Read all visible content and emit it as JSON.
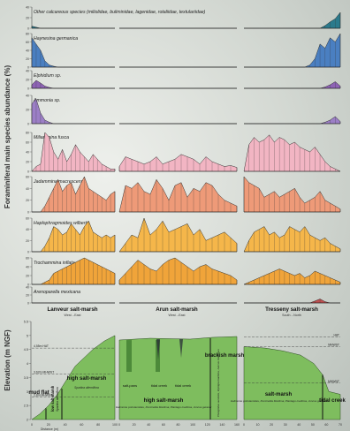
{
  "yaxis_title": "Foraminiferal main species abundance (%)",
  "elev_axis_title": "Elevation (m NGF)",
  "colors": {
    "calcareous": "#2b7a8c",
    "haynesina": "#4a7fc1",
    "elphidium": "#8e63b5",
    "ammonia": "#9c7fc6",
    "miliammina": "#f2b5c3",
    "jadammina": "#ee9a78",
    "haplophragmoides": "#f5b64a",
    "trochammina": "#f0a43a",
    "arenoparella": "#c05050",
    "marsh_green": "#7ebd5e",
    "marsh_dark": "#4d8a3a"
  },
  "species": [
    {
      "label": "Other calcareous species (miliolidae, buliminidae, lagenidae, rotaliidae, textulariidae)",
      "color_key": "calcareous",
      "ticks": [
        "40",
        "20",
        "0"
      ]
    },
    {
      "label": "Haynesina germanica",
      "color_key": "haynesina",
      "ticks": [
        "80",
        "60",
        "40",
        "20",
        "0"
      ]
    },
    {
      "label": "Elphidium sp.",
      "color_key": "elphidium",
      "ticks": [
        "40",
        "20",
        "0"
      ]
    },
    {
      "label": "Ammonia sp.",
      "color_key": "ammonia",
      "ticks": [
        "40",
        "20",
        "0"
      ]
    },
    {
      "label": "Miliammina fusca",
      "color_key": "miliammina",
      "ticks": [
        "80",
        "60",
        "40",
        "20",
        "0"
      ]
    },
    {
      "label": "Jadammina macrescens",
      "color_key": "jadammina",
      "ticks": [
        "60",
        "40",
        "20",
        "0"
      ]
    },
    {
      "label": "Haplophragmoides wilberti",
      "color_key": "haplophragmoides",
      "ticks": [
        "60",
        "40",
        "20",
        "0"
      ]
    },
    {
      "label": "Trochammina inflata",
      "color_key": "trochammina",
      "ticks": [
        "60",
        "40",
        "20",
        "0"
      ]
    },
    {
      "label": "Arenoparella mexicana",
      "color_key": "arenoparella",
      "ticks": [
        "40",
        "20",
        "0"
      ]
    }
  ],
  "sites": [
    {
      "name": "Lanveur salt-marsh",
      "orient": "West→East"
    },
    {
      "name": "Arun salt-marsh",
      "orient": "West→East"
    },
    {
      "name": "Tresseny salt-marsh",
      "orient": "South→North"
    }
  ],
  "elev_ticks": [
    "5.5",
    "5",
    "4.5",
    "4",
    "3.5",
    "3",
    "2.5",
    "2"
  ],
  "tide_levels": {
    "hat": "HAT",
    "mhwst": "MHWST",
    "mhwnt": "MHWNT",
    "l_hat": "4,55m HAT",
    "l_mhwst": "3,62m MHWST",
    "l_mhwnt": "2,8m MHWNT"
  },
  "zones": {
    "mud_flat": "mud flat",
    "low_sm": "low salt-marsh",
    "low_sm_sp": "Spartina alterniflora",
    "high_sm": "high salt-marsh",
    "high_sm_sp": "Spartina alterniflora",
    "salt_pans": "salt-pans",
    "tidal_creek": "tidal creek",
    "tidal_creek2": "tidal creek",
    "high_sm2": "high salt-marsh",
    "high_sm2_sp": "Halimione portulacoides, Puccinellia Maritima, Plantago maritima, Juncus gerardii",
    "brackish": "brackish marsh",
    "brackish_sp": "Phragmites australis, Elytrigia maritima, Juncus maritimus",
    "salt_marsh": "salt-marsh",
    "salt_marsh_sp": "Halimione portulacoides, Puccinellia Maritima, Plantago maritima, Juncus gerardii",
    "tidal_creek3": "tidal creek"
  },
  "x_ticks": {
    "lanveur": [
      "0",
      "20",
      "40",
      "60",
      "80",
      "100"
    ],
    "arun": [
      "0",
      "20",
      "40",
      "60",
      "80",
      "100",
      "120",
      "140",
      "160"
    ],
    "tresseny": [
      "0",
      "10",
      "20",
      "30",
      "40",
      "50",
      "60",
      "70"
    ]
  },
  "x_label": "Distance (m)",
  "chart_data": {
    "type": "area",
    "ylabel": "Foraminiferal main species abundance (%)",
    "sites": [
      "Lanveur salt-marsh",
      "Arun salt-marsh",
      "Tresseny salt-marsh"
    ],
    "x_per_site": [
      [
        0,
        5,
        10,
        15,
        20,
        25,
        30,
        35,
        40,
        45,
        50,
        55,
        60,
        65,
        70,
        75,
        80,
        85,
        90,
        95
      ],
      [
        0,
        8,
        16,
        24,
        32,
        40,
        48,
        56,
        64,
        72,
        80,
        88,
        96,
        104,
        112,
        120,
        128,
        136,
        144,
        152
      ],
      [
        0,
        4,
        8,
        12,
        16,
        20,
        24,
        28,
        32,
        36,
        40,
        44,
        48,
        52,
        56,
        60,
        64,
        68,
        72,
        76
      ]
    ],
    "series": [
      {
        "name": "Other calcareous species (miliolidae, buliminidae, lagenidae, rotaliidae, textulariidae)",
        "ymax": 40,
        "values": [
          [
            4,
            2,
            0,
            0,
            0,
            0,
            0,
            0,
            0,
            0,
            0,
            0,
            0,
            0,
            0,
            0,
            0,
            0,
            0,
            0
          ],
          [
            0,
            0,
            0,
            0,
            0,
            0,
            0,
            0,
            0,
            0,
            0,
            0,
            0,
            0,
            0,
            0,
            0,
            0,
            0,
            0
          ],
          [
            0,
            0,
            0,
            0,
            0,
            0,
            0,
            0,
            0,
            0,
            0,
            0,
            0,
            0,
            0,
            0,
            5,
            12,
            18,
            30
          ]
        ]
      },
      {
        "name": "Haynesina germanica",
        "ymax": 80,
        "values": [
          [
            70,
            55,
            40,
            15,
            5,
            2,
            0,
            0,
            0,
            0,
            0,
            0,
            0,
            0,
            0,
            0,
            0,
            0,
            0,
            0
          ],
          [
            0,
            0,
            0,
            0,
            0,
            0,
            0,
            0,
            0,
            0,
            0,
            0,
            0,
            0,
            0,
            0,
            0,
            0,
            0,
            0
          ],
          [
            0,
            0,
            0,
            0,
            0,
            0,
            0,
            0,
            0,
            0,
            0,
            0,
            0,
            5,
            20,
            55,
            45,
            70,
            60,
            80
          ]
        ]
      },
      {
        "name": "Elphidium sp.",
        "ymax": 40,
        "values": [
          [
            8,
            18,
            12,
            5,
            2,
            0,
            0,
            0,
            0,
            0,
            0,
            0,
            0,
            0,
            0,
            0,
            0,
            0,
            0,
            0
          ],
          [
            0,
            0,
            0,
            0,
            0,
            0,
            0,
            0,
            0,
            0,
            0,
            0,
            0,
            0,
            0,
            0,
            0,
            0,
            0,
            0
          ],
          [
            0,
            0,
            0,
            0,
            0,
            0,
            0,
            0,
            0,
            0,
            0,
            0,
            0,
            0,
            0,
            0,
            3,
            8,
            15,
            5
          ]
        ]
      },
      {
        "name": "Ammonia sp.",
        "ymax": 40,
        "values": [
          [
            28,
            35,
            15,
            5,
            2,
            0,
            0,
            0,
            0,
            0,
            0,
            0,
            0,
            0,
            0,
            0,
            0,
            0,
            0,
            0
          ],
          [
            0,
            0,
            0,
            0,
            0,
            0,
            0,
            0,
            0,
            0,
            0,
            0,
            0,
            0,
            0,
            0,
            0,
            0,
            0,
            0
          ],
          [
            0,
            0,
            0,
            0,
            0,
            0,
            0,
            0,
            0,
            0,
            0,
            0,
            0,
            0,
            0,
            0,
            2,
            5,
            10,
            3
          ]
        ]
      },
      {
        "name": "Miliammina fusca",
        "ymax": 80,
        "values": [
          [
            0,
            10,
            15,
            80,
            70,
            40,
            25,
            45,
            20,
            35,
            55,
            40,
            30,
            20,
            35,
            25,
            15,
            10,
            5,
            5
          ],
          [
            10,
            30,
            25,
            20,
            15,
            20,
            30,
            15,
            20,
            25,
            35,
            30,
            25,
            15,
            30,
            20,
            15,
            10,
            12,
            8
          ],
          [
            0,
            55,
            70,
            60,
            65,
            75,
            60,
            70,
            65,
            55,
            60,
            50,
            45,
            40,
            50,
            35,
            20,
            10,
            5,
            0
          ]
        ]
      },
      {
        "name": "Jadammina macrescens",
        "ymax": 60,
        "values": [
          [
            0,
            0,
            0,
            10,
            25,
            40,
            55,
            35,
            45,
            50,
            30,
            45,
            60,
            40,
            35,
            30,
            25,
            20,
            30,
            35
          ],
          [
            0,
            45,
            40,
            50,
            35,
            30,
            55,
            40,
            20,
            45,
            50,
            25,
            40,
            35,
            50,
            45,
            30,
            20,
            15,
            10
          ],
          [
            60,
            50,
            45,
            40,
            25,
            30,
            35,
            25,
            30,
            35,
            40,
            25,
            15,
            20,
            25,
            35,
            20,
            15,
            10,
            5
          ]
        ]
      },
      {
        "name": "Haplophragmoides wilberti",
        "ymax": 60,
        "values": [
          [
            0,
            0,
            0,
            10,
            25,
            45,
            40,
            30,
            35,
            50,
            40,
            30,
            45,
            55,
            35,
            30,
            25,
            30,
            25,
            30
          ],
          [
            0,
            15,
            30,
            25,
            60,
            30,
            40,
            55,
            35,
            40,
            45,
            50,
            30,
            40,
            20,
            25,
            30,
            35,
            25,
            15
          ],
          [
            0,
            20,
            35,
            40,
            45,
            30,
            35,
            25,
            30,
            45,
            40,
            35,
            45,
            30,
            25,
            20,
            25,
            15,
            10,
            5
          ]
        ]
      },
      {
        "name": "Trochammina inflata",
        "ymax": 60,
        "values": [
          [
            0,
            0,
            0,
            5,
            10,
            25,
            30,
            35,
            40,
            45,
            50,
            55,
            60,
            55,
            50,
            45,
            40,
            35,
            30,
            25
          ],
          [
            10,
            25,
            40,
            55,
            45,
            35,
            30,
            45,
            55,
            60,
            50,
            40,
            30,
            40,
            45,
            35,
            30,
            25,
            20,
            10
          ],
          [
            0,
            5,
            10,
            15,
            20,
            25,
            30,
            35,
            30,
            25,
            20,
            25,
            15,
            20,
            30,
            25,
            20,
            15,
            10,
            5
          ]
        ]
      },
      {
        "name": "Arenoparella mexicana",
        "ymax": 40,
        "values": [
          [
            0,
            0,
            0,
            0,
            0,
            0,
            0,
            0,
            0,
            0,
            0,
            0,
            0,
            0,
            0,
            0,
            0,
            0,
            0,
            0
          ],
          [
            0,
            0,
            0,
            0,
            0,
            0,
            0,
            0,
            0,
            0,
            0,
            0,
            0,
            0,
            0,
            0,
            0,
            0,
            0,
            0
          ],
          [
            0,
            0,
            0,
            0,
            0,
            0,
            0,
            0,
            0,
            0,
            0,
            0,
            0,
            0,
            5,
            10,
            3,
            0,
            0,
            0
          ]
        ]
      }
    ]
  }
}
